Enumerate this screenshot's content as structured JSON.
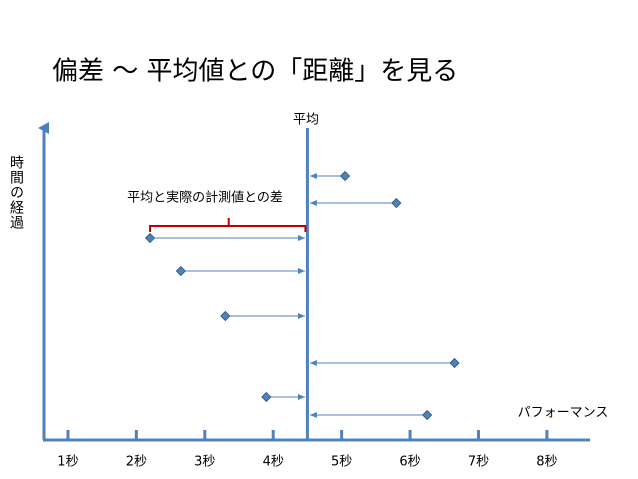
{
  "chart_data": {
    "type": "deviation",
    "title": "偏差 〜 平均値との「距離」を見る",
    "mean": 4.5,
    "mean_label": "平均",
    "annotation": "平均と実際の計測値との差",
    "x_label": "パフォーマンス",
    "y_label": "時間の経過",
    "values": [
      5.05,
      5.8,
      2.2,
      2.65,
      3.3,
      6.65,
      3.9,
      6.25
    ],
    "color": "#4f81bd",
    "annotation_color": "#c00000",
    "xlim": [
      0.65,
      8.63
    ],
    "xticks": [
      {
        "value": 1,
        "label": "1秒"
      },
      {
        "value": 2,
        "label": "2秒"
      },
      {
        "value": 3,
        "label": "3秒"
      },
      {
        "value": 4,
        "label": "4秒"
      },
      {
        "value": 5,
        "label": "5秒"
      },
      {
        "value": 6,
        "label": "6秒"
      },
      {
        "value": 7,
        "label": "7秒"
      },
      {
        "value": 8,
        "label": "8秒"
      }
    ]
  }
}
